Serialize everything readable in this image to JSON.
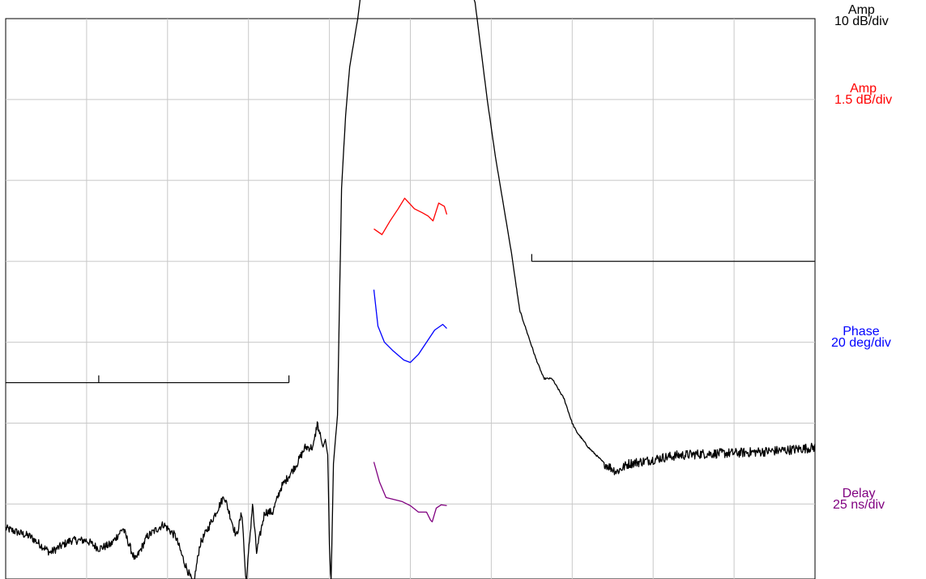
{
  "chart_data": {
    "type": "line",
    "grid": true,
    "grid_divisions": {
      "x": 10,
      "y": 7
    },
    "y_scales": [
      {
        "id": "amp_wide",
        "title": "Amp",
        "unit": "10 dB/div",
        "color": "#000000"
      },
      {
        "id": "amp_fine",
        "title": "Amp",
        "unit": "1.5 dB/div",
        "color": "#ff0000"
      },
      {
        "id": "phase",
        "title": "Phase",
        "unit": "20 deg/div",
        "color": "#0000ff"
      },
      {
        "id": "delay",
        "title": "Delay",
        "unit": "25 ns/div",
        "color": "#800080"
      }
    ],
    "series": [
      {
        "scale": "amp_wide",
        "color": "#000000",
        "noise_from_x": 7.4,
        "x": [
          0.0,
          0.3,
          0.55,
          0.8,
          1.0,
          1.15,
          1.3,
          1.45,
          1.6,
          1.75,
          1.95,
          2.1,
          2.2,
          2.32,
          2.4,
          2.55,
          2.7,
          2.85,
          2.92,
          2.97,
          3.05,
          3.1,
          3.2,
          3.3,
          3.4,
          3.6,
          3.7,
          3.8,
          3.85,
          3.92,
          3.95,
          3.98,
          4.0,
          4.02,
          4.05,
          4.1,
          4.15,
          4.2,
          4.25,
          4.35,
          4.4,
          4.5,
          4.6,
          4.8,
          5.0,
          5.2,
          5.4,
          5.6,
          5.7,
          5.75,
          5.8,
          5.95,
          6.05,
          6.15,
          6.25,
          6.35,
          6.45,
          6.55,
          6.65,
          6.75,
          6.9,
          7.0,
          7.05,
          7.2,
          7.3,
          7.4,
          7.55,
          7.7,
          7.9,
          8.1,
          8.3,
          8.6,
          9.0,
          9.4,
          9.7,
          10.0
        ],
        "y": [
          0.7,
          0.6,
          0.4,
          0.55,
          0.55,
          0.45,
          0.5,
          0.7,
          0.3,
          0.6,
          0.75,
          0.6,
          0.3,
          0.0,
          0.5,
          0.8,
          1.1,
          0.6,
          0.9,
          0.0,
          1.0,
          0.4,
          0.9,
          0.9,
          1.2,
          1.5,
          1.7,
          1.7,
          2.0,
          1.7,
          1.8,
          1.6,
          0.5,
          0.0,
          1.5,
          2.1,
          4.9,
          5.8,
          6.4,
          7.0,
          7.4,
          7.57,
          7.6,
          7.58,
          7.66,
          7.63,
          7.65,
          7.6,
          7.5,
          7.35,
          7.2,
          6.0,
          5.3,
          4.7,
          4.1,
          3.4,
          3.1,
          2.8,
          2.55,
          2.55,
          2.3,
          2.0,
          1.9,
          1.7,
          1.6,
          1.5,
          1.4,
          1.5,
          1.53,
          1.57,
          1.6,
          1.62,
          1.63,
          1.65,
          1.67,
          1.7
        ]
      },
      {
        "scale": "amp_fine",
        "color": "#ff0000",
        "x": [
          4.55,
          4.65,
          4.75,
          4.85,
          4.93,
          5.05,
          5.15,
          5.22,
          5.28,
          5.35,
          5.42,
          5.45
        ],
        "y": [
          4.4,
          4.33,
          4.5,
          4.65,
          4.78,
          4.65,
          4.6,
          4.56,
          4.5,
          4.72,
          4.68,
          4.58
        ]
      },
      {
        "scale": "phase",
        "color": "#0000ff",
        "x": [
          4.55,
          4.6,
          4.68,
          4.78,
          4.92,
          5.0,
          5.1,
          5.2,
          5.3,
          5.4,
          5.45
        ],
        "y": [
          3.65,
          3.2,
          3.0,
          2.9,
          2.78,
          2.75,
          2.85,
          3.0,
          3.15,
          3.22,
          3.17
        ]
      },
      {
        "scale": "delay",
        "color": "#800080",
        "x": [
          4.55,
          4.62,
          4.7,
          4.9,
          5.0,
          5.1,
          5.2,
          5.25,
          5.27,
          5.32,
          5.38,
          5.45
        ],
        "y": [
          1.52,
          1.27,
          1.08,
          1.03,
          0.98,
          0.9,
          0.9,
          0.8,
          0.78,
          0.95,
          0.99,
          0.98
        ]
      }
    ],
    "brackets": [
      {
        "color": "#000000",
        "x": [
          0.0,
          3.5
        ],
        "y": 2.5,
        "tick_x": [
          1.15,
          3.5
        ]
      },
      {
        "color": "#000000",
        "x": [
          6.5,
          10.0
        ],
        "y": 4.0,
        "tick_x": [
          6.5
        ]
      }
    ]
  }
}
